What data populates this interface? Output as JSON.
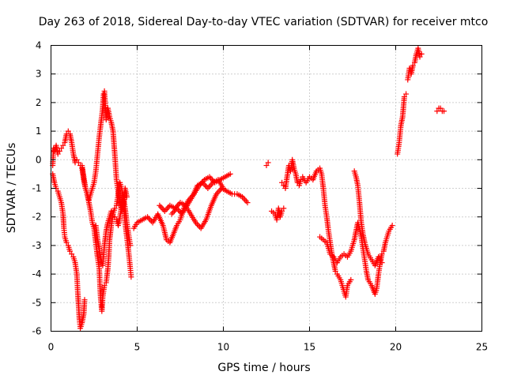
{
  "chart_data": {
    "type": "scatter",
    "title": "Day 263 of 2018, Sidereal Day-to-day VTEC variation (SDTVAR) for receiver mtco",
    "xlabel": "GPS time / hours",
    "ylabel": "SDTVAR / TECUs",
    "xlim": [
      0,
      25
    ],
    "ylim": [
      -6,
      4
    ],
    "x_ticks": [
      "0",
      "5",
      "10",
      "15",
      "20",
      "25"
    ],
    "y_ticks": [
      "4",
      "3",
      "2",
      "1",
      "0",
      "-1",
      "-2",
      "-3",
      "-4",
      "-5",
      "-6"
    ],
    "grid": true,
    "marker": "plus",
    "color": "#ff0000",
    "series": [
      {
        "name": "SDTVAR",
        "segments": [
          [
            [
              0.1,
              -0.2
            ],
            [
              0.15,
              0.4
            ],
            [
              0.2,
              0.3
            ],
            [
              0.3,
              0.5
            ],
            [
              0.4,
              0.2
            ],
            [
              0.5,
              0.3
            ],
            [
              0.6,
              0.4
            ],
            [
              0.7,
              0.5
            ],
            [
              0.8,
              0.6
            ],
            [
              0.9,
              0.9
            ],
            [
              1.0,
              1.0
            ],
            [
              1.1,
              0.9
            ],
            [
              1.2,
              0.6
            ],
            [
              1.3,
              0.2
            ],
            [
              1.4,
              -0.1
            ],
            [
              1.5,
              0.0
            ],
            [
              1.6,
              -0.1
            ],
            [
              1.7,
              -0.2
            ],
            [
              1.8,
              -0.2
            ],
            [
              1.9,
              -0.6
            ],
            [
              2.0,
              -1.0
            ],
            [
              2.1,
              -1.2
            ],
            [
              2.2,
              -1.5
            ],
            [
              2.3,
              -1.8
            ],
            [
              2.4,
              -2.2
            ],
            [
              2.5,
              -2.4
            ],
            [
              2.6,
              -2.9
            ],
            [
              2.7,
              -3.4
            ],
            [
              2.8,
              -3.8
            ],
            [
              2.85,
              -4.5
            ],
            [
              2.9,
              -5.0
            ],
            [
              2.95,
              -5.3
            ],
            [
              3.0,
              -4.8
            ],
            [
              3.1,
              -4.4
            ],
            [
              3.2,
              -4.3
            ],
            [
              3.3,
              -3.8
            ],
            [
              3.35,
              -3.4
            ],
            [
              3.4,
              -2.8
            ],
            [
              3.5,
              -2.3
            ],
            [
              3.6,
              -1.9
            ],
            [
              3.7,
              -1.7
            ],
            [
              3.8,
              -1.6
            ],
            [
              3.9,
              -1.2
            ],
            [
              4.0,
              -0.8
            ],
            [
              4.1,
              -1.0
            ],
            [
              4.2,
              -1.5
            ],
            [
              4.3,
              -2.2
            ],
            [
              4.4,
              -2.7
            ],
            [
              4.5,
              -3.2
            ],
            [
              4.6,
              -3.8
            ],
            [
              4.65,
              -4.1
            ]
          ],
          [
            [
              0.1,
              -0.5
            ],
            [
              0.2,
              -0.8
            ],
            [
              0.3,
              -1.0
            ],
            [
              0.4,
              -1.1
            ],
            [
              0.5,
              -1.3
            ],
            [
              0.6,
              -1.5
            ],
            [
              0.7,
              -1.9
            ],
            [
              0.75,
              -2.4
            ],
            [
              0.8,
              -2.7
            ],
            [
              0.9,
              -2.9
            ],
            [
              1.0,
              -3.0
            ],
            [
              1.1,
              -3.2
            ],
            [
              1.2,
              -3.3
            ],
            [
              1.3,
              -3.4
            ],
            [
              1.4,
              -3.6
            ],
            [
              1.5,
              -4.0
            ],
            [
              1.55,
              -4.6
            ],
            [
              1.6,
              -5.1
            ],
            [
              1.65,
              -5.6
            ],
            [
              1.7,
              -5.9
            ],
            [
              1.8,
              -5.7
            ],
            [
              1.9,
              -5.4
            ],
            [
              1.95,
              -4.9
            ]
          ],
          [
            [
              1.8,
              -0.3
            ],
            [
              1.9,
              -0.7
            ],
            [
              2.0,
              -1.0
            ],
            [
              2.1,
              -1.2
            ],
            [
              2.2,
              -1.4
            ],
            [
              2.3,
              -1.2
            ],
            [
              2.4,
              -1.0
            ],
            [
              2.5,
              -0.8
            ],
            [
              2.6,
              -0.4
            ],
            [
              2.7,
              0.2
            ],
            [
              2.8,
              0.8
            ],
            [
              2.9,
              1.3
            ],
            [
              3.0,
              1.8
            ],
            [
              3.05,
              2.3
            ],
            [
              3.1,
              2.4
            ],
            [
              3.15,
              1.9
            ],
            [
              3.2,
              1.4
            ],
            [
              3.3,
              1.8
            ],
            [
              3.4,
              1.5
            ],
            [
              3.5,
              1.3
            ],
            [
              3.6,
              1.0
            ],
            [
              3.7,
              0.2
            ],
            [
              3.8,
              -0.7
            ],
            [
              3.9,
              -1.1
            ],
            [
              4.0,
              -1.5
            ],
            [
              4.1,
              -1.8
            ],
            [
              4.2,
              -1.6
            ],
            [
              4.3,
              -1.0
            ],
            [
              4.4,
              -1.3
            ]
          ],
          [
            [
              2.6,
              -2.3
            ],
            [
              2.7,
              -2.8
            ],
            [
              2.8,
              -3.1
            ],
            [
              2.9,
              -3.5
            ],
            [
              3.0,
              -3.7
            ],
            [
              3.1,
              -3.0
            ],
            [
              3.2,
              -2.5
            ],
            [
              3.3,
              -2.2
            ],
            [
              3.4,
              -2.0
            ],
            [
              3.5,
              -1.8
            ],
            [
              3.6,
              -1.9
            ],
            [
              3.7,
              -2.0
            ],
            [
              3.8,
              -2.1
            ],
            [
              3.9,
              -2.3
            ],
            [
              4.0,
              -2.0
            ],
            [
              4.1,
              -1.6
            ],
            [
              4.2,
              -1.2
            ],
            [
              4.3,
              -1.7
            ],
            [
              4.4,
              -2.2
            ],
            [
              4.5,
              -2.6
            ],
            [
              4.6,
              -3.0
            ]
          ],
          [
            [
              4.8,
              -2.4
            ],
            [
              5.0,
              -2.2
            ],
            [
              5.3,
              -2.1
            ],
            [
              5.6,
              -2.0
            ],
            [
              5.9,
              -2.2
            ],
            [
              6.2,
              -1.9
            ],
            [
              6.5,
              -2.3
            ],
            [
              6.7,
              -2.8
            ],
            [
              6.9,
              -2.9
            ],
            [
              7.1,
              -2.6
            ],
            [
              7.3,
              -2.3
            ],
            [
              7.5,
              -2.1
            ],
            [
              7.7,
              -1.7
            ],
            [
              8.0,
              -1.4
            ],
            [
              8.3,
              -1.2
            ],
            [
              8.6,
              -0.9
            ],
            [
              8.9,
              -0.7
            ],
            [
              9.2,
              -0.6
            ],
            [
              9.5,
              -0.8
            ],
            [
              9.8,
              -0.7
            ],
            [
              10.1,
              -0.6
            ],
            [
              10.4,
              -0.5
            ]
          ],
          [
            [
              6.3,
              -1.6
            ],
            [
              6.6,
              -1.8
            ],
            [
              6.9,
              -1.6
            ],
            [
              7.2,
              -1.7
            ],
            [
              7.5,
              -1.5
            ],
            [
              7.8,
              -1.6
            ],
            [
              8.1,
              -1.9
            ],
            [
              8.4,
              -2.2
            ],
            [
              8.7,
              -2.4
            ],
            [
              9.0,
              -2.1
            ],
            [
              9.3,
              -1.6
            ],
            [
              9.6,
              -1.2
            ],
            [
              9.9,
              -1.0
            ],
            [
              10.2,
              -1.1
            ],
            [
              10.5,
              -1.2
            ],
            [
              10.8,
              -1.2
            ],
            [
              11.1,
              -1.3
            ],
            [
              11.4,
              -1.5
            ]
          ],
          [
            [
              7.0,
              -1.9
            ],
            [
              7.3,
              -1.7
            ],
            [
              7.6,
              -1.9
            ],
            [
              7.9,
              -1.6
            ],
            [
              8.2,
              -1.3
            ],
            [
              8.5,
              -0.9
            ],
            [
              8.8,
              -0.8
            ],
            [
              9.1,
              -1.0
            ],
            [
              9.4,
              -0.8
            ],
            [
              9.7,
              -0.7
            ],
            [
              10.0,
              -1.0
            ]
          ],
          [
            [
              12.5,
              -0.2
            ],
            [
              12.6,
              -0.1
            ]
          ],
          [
            [
              12.8,
              -1.8
            ],
            [
              13.0,
              -1.9
            ],
            [
              13.1,
              -2.1
            ],
            [
              13.2,
              -1.7
            ],
            [
              13.3,
              -2.0
            ],
            [
              13.4,
              -1.8
            ],
            [
              13.5,
              -1.7
            ]
          ],
          [
            [
              13.4,
              -0.8
            ],
            [
              13.5,
              -0.9
            ],
            [
              13.6,
              -1.0
            ],
            [
              13.8,
              -0.2
            ],
            [
              13.9,
              -0.4
            ],
            [
              14.0,
              0.0
            ],
            [
              14.1,
              -0.3
            ],
            [
              14.2,
              -0.5
            ],
            [
              14.3,
              -0.8
            ],
            [
              14.4,
              -0.9
            ],
            [
              14.5,
              -0.7
            ],
            [
              14.6,
              -0.6
            ],
            [
              14.8,
              -0.8
            ],
            [
              15.0,
              -0.6
            ],
            [
              15.2,
              -0.7
            ],
            [
              15.4,
              -0.4
            ],
            [
              15.6,
              -0.3
            ],
            [
              15.7,
              -0.5
            ],
            [
              15.8,
              -1.0
            ],
            [
              15.9,
              -1.6
            ],
            [
              16.0,
              -2.0
            ],
            [
              16.1,
              -2.5
            ],
            [
              16.2,
              -2.9
            ],
            [
              16.3,
              -3.3
            ],
            [
              16.4,
              -3.6
            ],
            [
              16.5,
              -3.9
            ],
            [
              16.6,
              -4.0
            ],
            [
              16.8,
              -4.2
            ],
            [
              17.0,
              -4.6
            ],
            [
              17.1,
              -4.8
            ],
            [
              17.2,
              -4.4
            ],
            [
              17.4,
              -4.2
            ]
          ],
          [
            [
              15.6,
              -2.7
            ],
            [
              15.8,
              -2.8
            ],
            [
              16.0,
              -2.9
            ],
            [
              16.2,
              -3.3
            ],
            [
              16.4,
              -3.4
            ],
            [
              16.6,
              -3.6
            ],
            [
              16.8,
              -3.4
            ],
            [
              17.0,
              -3.3
            ],
            [
              17.2,
              -3.4
            ],
            [
              17.4,
              -3.2
            ],
            [
              17.5,
              -3.0
            ],
            [
              17.6,
              -2.8
            ],
            [
              17.7,
              -2.5
            ],
            [
              17.8,
              -2.2
            ],
            [
              17.9,
              -2.4
            ],
            [
              18.0,
              -2.7
            ],
            [
              18.1,
              -3.1
            ],
            [
              18.2,
              -3.5
            ],
            [
              18.3,
              -3.9
            ],
            [
              18.4,
              -4.2
            ],
            [
              18.6,
              -4.4
            ],
            [
              18.8,
              -4.7
            ],
            [
              18.9,
              -4.5
            ],
            [
              19.0,
              -4.0
            ],
            [
              19.1,
              -3.6
            ],
            [
              19.2,
              -3.3
            ],
            [
              19.3,
              -3.2
            ],
            [
              19.4,
              -2.9
            ],
            [
              19.5,
              -2.7
            ],
            [
              19.6,
              -2.5
            ],
            [
              19.8,
              -2.3
            ]
          ],
          [
            [
              17.6,
              -0.4
            ],
            [
              17.7,
              -0.6
            ],
            [
              17.8,
              -0.9
            ],
            [
              17.9,
              -1.5
            ],
            [
              18.0,
              -2.2
            ],
            [
              18.1,
              -2.6
            ],
            [
              18.2,
              -2.9
            ],
            [
              18.4,
              -3.3
            ],
            [
              18.6,
              -3.5
            ],
            [
              18.8,
              -3.7
            ],
            [
              19.0,
              -3.4
            ],
            [
              19.2,
              -3.6
            ]
          ],
          [
            [
              20.1,
              0.2
            ],
            [
              20.2,
              0.6
            ],
            [
              20.3,
              1.2
            ],
            [
              20.4,
              1.5
            ],
            [
              20.5,
              2.2
            ],
            [
              20.6,
              2.3
            ]
          ],
          [
            [
              20.7,
              2.8
            ],
            [
              20.8,
              3.2
            ],
            [
              20.9,
              3.0
            ],
            [
              21.0,
              3.3
            ],
            [
              21.1,
              3.4
            ],
            [
              21.2,
              3.7
            ],
            [
              21.3,
              3.9
            ],
            [
              21.4,
              3.6
            ],
            [
              21.5,
              3.7
            ]
          ],
          [
            [
              22.4,
              1.7
            ],
            [
              22.5,
              1.8
            ],
            [
              22.6,
              1.8
            ],
            [
              22.7,
              1.7
            ],
            [
              22.8,
              1.7
            ]
          ]
        ]
      }
    ]
  }
}
